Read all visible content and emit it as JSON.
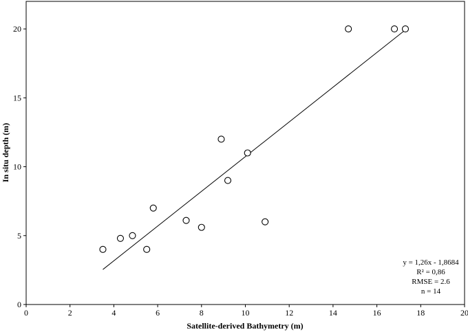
{
  "chart_data": {
    "type": "scatter",
    "title": "",
    "xlabel": "Satellite-derived Bathymetry (m)",
    "ylabel": "In situ depth (m)",
    "xlim": [
      0,
      20
    ],
    "ylim": [
      0,
      22
    ],
    "x_ticks": [
      "0",
      "2",
      "4",
      "6",
      "8",
      "10",
      "12",
      "14",
      "16",
      "18",
      "20"
    ],
    "y_ticks": [
      "0",
      "5",
      "10",
      "15",
      "20"
    ],
    "grid": false,
    "legend": "none",
    "marker": "open-circle",
    "points": [
      {
        "x": 3.5,
        "y": 4.0
      },
      {
        "x": 4.3,
        "y": 4.8
      },
      {
        "x": 4.85,
        "y": 5.0
      },
      {
        "x": 5.5,
        "y": 4.0
      },
      {
        "x": 5.8,
        "y": 7.0
      },
      {
        "x": 7.3,
        "y": 6.1
      },
      {
        "x": 8.0,
        "y": 5.6
      },
      {
        "x": 8.9,
        "y": 12.0
      },
      {
        "x": 9.2,
        "y": 9.0
      },
      {
        "x": 10.1,
        "y": 11.0
      },
      {
        "x": 10.9,
        "y": 6.0
      },
      {
        "x": 14.7,
        "y": 20.0
      },
      {
        "x": 16.8,
        "y": 20.0
      },
      {
        "x": 17.3,
        "y": 20.0
      }
    ],
    "trendline": {
      "slope": 1.26,
      "intercept": -1.8684,
      "x_start": 3.5,
      "x_end": 17.3
    },
    "annotations": [
      "y = 1,26x - 1,8684",
      "R² = 0,86",
      "RMSE = 2.6",
      "n = 14"
    ]
  }
}
